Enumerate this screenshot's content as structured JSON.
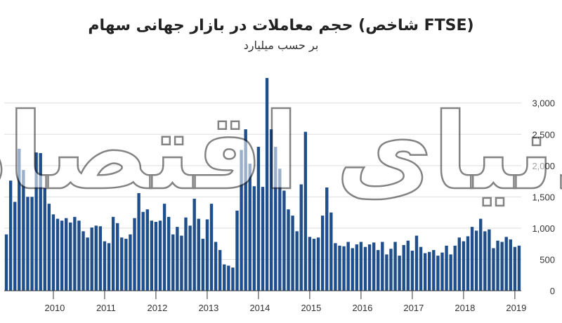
{
  "title": "حجم معاملات در بازار جهانی سهام (شاخص FTSE)",
  "subtitle": "بر حسب میلیارد",
  "watermark": "دنیای اقتصاد",
  "colors": {
    "bar": "#1f4e8c",
    "axis": "#333333",
    "grid": "#dddddd"
  },
  "chart_data": {
    "type": "bar",
    "title": "حجم معاملات در بازار جهانی سهام (شاخص FTSE)",
    "subtitle": "بر حسب میلیارد",
    "ylim": [
      0,
      3300
    ],
    "yticks": [
      0,
      500,
      1000,
      1500,
      2000,
      2500,
      3000
    ],
    "ytick_labels": [
      "0",
      "500",
      "1,000",
      "1,500",
      "2,000",
      "2,500",
      "3,000"
    ],
    "x_start": "2009-02",
    "xticks": [
      {
        "label": "2010",
        "index": 11
      },
      {
        "label": "2011",
        "index": 23
      },
      {
        "label": "2012",
        "index": 35
      },
      {
        "label": "2013",
        "index": 47
      },
      {
        "label": "2014",
        "index": 59
      },
      {
        "label": "2015",
        "index": 71
      },
      {
        "label": "2016",
        "index": 83
      },
      {
        "label": "2017",
        "index": 95
      },
      {
        "label": "2018",
        "index": 107
      },
      {
        "label": "2019",
        "index": 119
      }
    ],
    "values": [
      900,
      1760,
      1420,
      2270,
      1930,
      1500,
      1500,
      2210,
      2200,
      1640,
      1390,
      1220,
      1150,
      1120,
      1160,
      1090,
      1180,
      1120,
      950,
      850,
      1010,
      1040,
      1030,
      790,
      760,
      1180,
      1080,
      850,
      830,
      900,
      1160,
      1560,
      1260,
      1300,
      1120,
      1100,
      1120,
      1390,
      1180,
      900,
      1020,
      880,
      1170,
      1040,
      1470,
      1150,
      830,
      1140,
      1390,
      780,
      650,
      420,
      400,
      370,
      1280,
      2250,
      2580,
      2030,
      1670,
      2300,
      1660,
      3400,
      2580,
      2300,
      1950,
      1600,
      1300,
      1200,
      950,
      1700,
      2540,
      860,
      830,
      850,
      1200,
      1650,
      1250,
      760,
      720,
      710,
      780,
      680,
      740,
      780,
      700,
      740,
      770,
      650,
      780,
      580,
      670,
      780,
      560,
      730,
      800,
      640,
      880,
      700,
      600,
      620,
      650,
      560,
      610,
      720,
      580,
      720,
      850,
      790,
      870,
      1020,
      960,
      1150,
      950,
      980,
      680,
      800,
      780,
      860,
      820,
      700,
      720
    ]
  }
}
